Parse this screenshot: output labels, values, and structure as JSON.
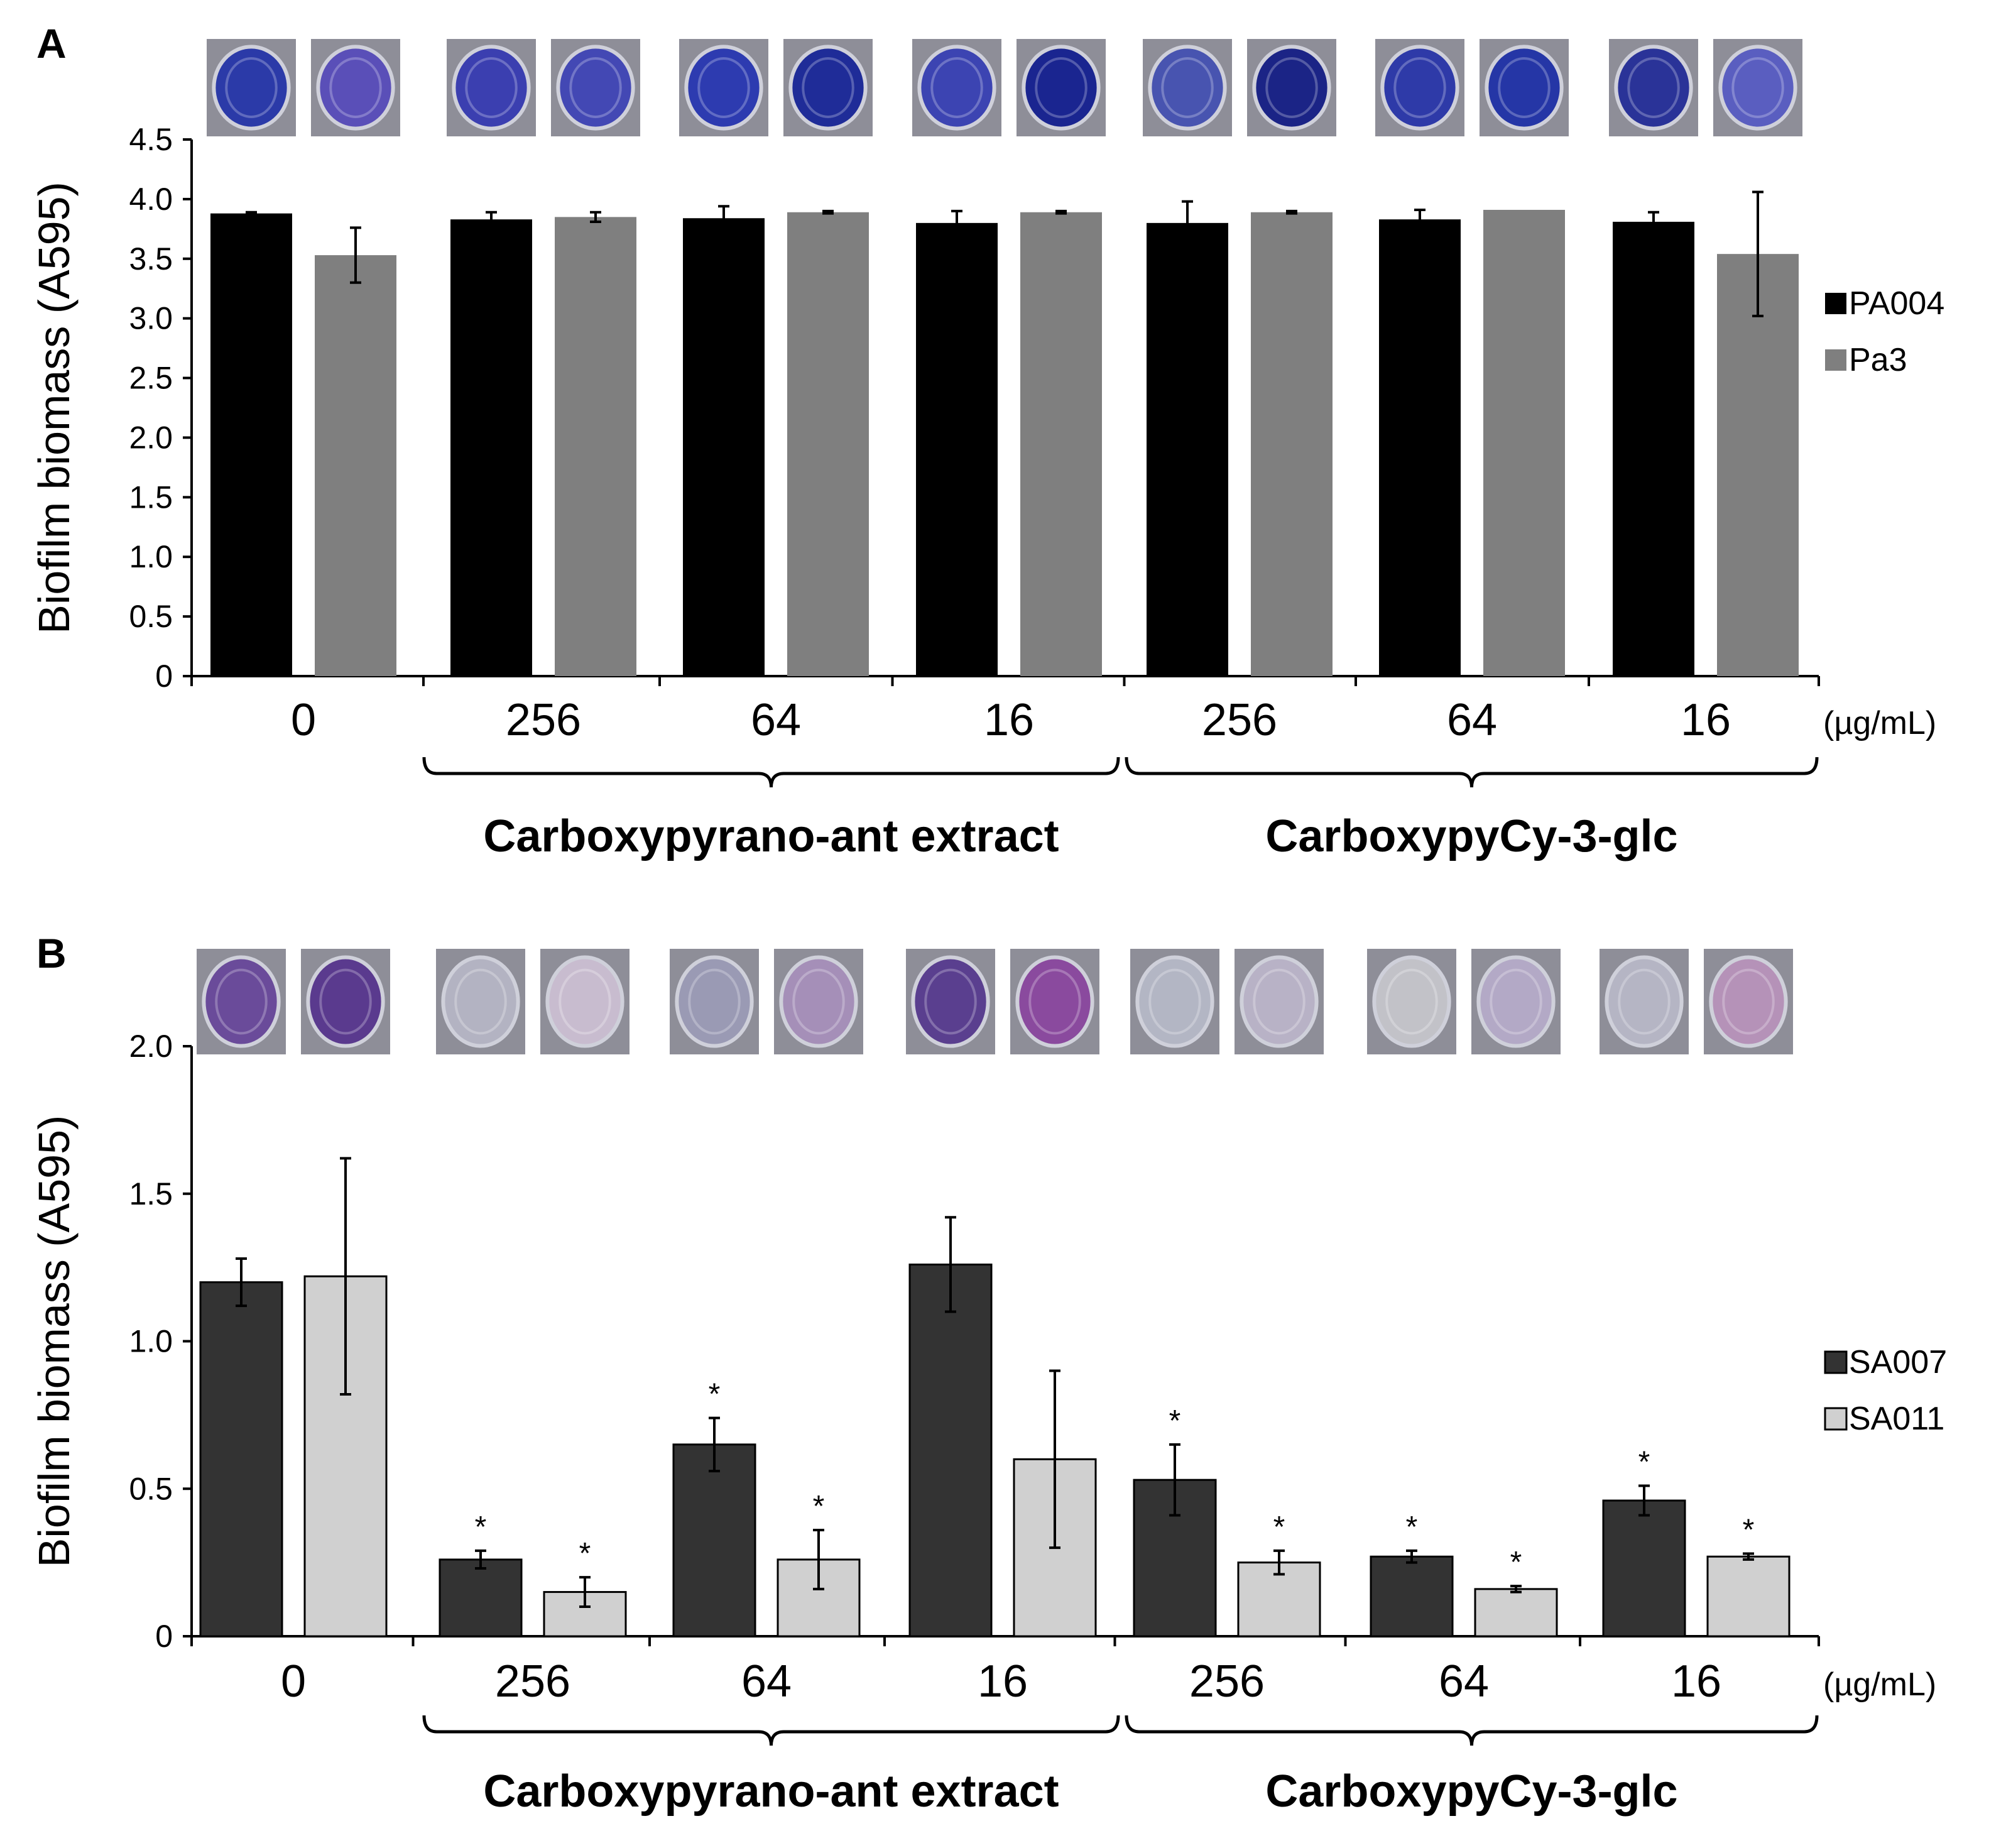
{
  "chart_data": [
    {
      "panel": "A",
      "type": "bar",
      "ylabel": "Biofilm biomass (A595)",
      "ylim": [
        0,
        4.5
      ],
      "yticks": [
        "0",
        "0.5",
        "1.0",
        "1.5",
        "2.0",
        "2.5",
        "3.0",
        "3.5",
        "4.0",
        "4.5"
      ],
      "categories": [
        "0",
        "256",
        "64",
        "16",
        "256",
        "64",
        "16"
      ],
      "unit": "(µg/mL)",
      "groups": [
        {
          "label": "Carboxypyrano-ant extract"
        },
        {
          "label": "CarboxypyCy-3-glc"
        }
      ],
      "series": [
        {
          "name": "PA004",
          "color": "#000000",
          "values": [
            3.88,
            3.83,
            3.84,
            3.8,
            3.8,
            3.83,
            3.81
          ],
          "errors": [
            0.01,
            0.06,
            0.1,
            0.1,
            0.18,
            0.08,
            0.08
          ]
        },
        {
          "name": "Pa3",
          "color": "#7f7f7f",
          "values": [
            3.53,
            3.85,
            3.89,
            3.89,
            3.89,
            3.91,
            3.54
          ],
          "errors": [
            0.23,
            0.04,
            0.01,
            0.01,
            0.01,
            0.0,
            0.52
          ]
        }
      ],
      "well_colors": [
        "#2b3aa8",
        "#5a4fb8",
        "#3b3fb0",
        "#4348b4",
        "#2d3bb0",
        "#1f2c98",
        "#3c44b2",
        "#1a2590",
        "#4854b0",
        "#1b2486",
        "#2e3aa8",
        "#2536a6",
        "#2a3398",
        "#5a5ec0"
      ]
    },
    {
      "panel": "B",
      "type": "bar",
      "ylabel": "Biofilm biomass (A595)",
      "ylim": [
        0,
        2.0
      ],
      "yticks": [
        "0",
        "0.5",
        "1.0",
        "1.5",
        "2.0"
      ],
      "categories": [
        "0",
        "256",
        "64",
        "16",
        "256",
        "64",
        "16"
      ],
      "unit": "(µg/mL)",
      "groups": [
        {
          "label": "Carboxypyrano-ant extract"
        },
        {
          "label": "CarboxypyCy-3-glc"
        }
      ],
      "series": [
        {
          "name": "SA007",
          "color": "#333333",
          "values": [
            1.2,
            0.26,
            0.65,
            1.26,
            0.53,
            0.27,
            0.46
          ],
          "errors": [
            0.08,
            0.03,
            0.09,
            0.16,
            0.12,
            0.02,
            0.05
          ],
          "significant": [
            false,
            true,
            true,
            false,
            true,
            true,
            true
          ]
        },
        {
          "name": "SA011",
          "color": "#d0d0d0",
          "values": [
            1.22,
            0.15,
            0.26,
            0.6,
            0.25,
            0.16,
            0.27
          ],
          "errors": [
            0.4,
            0.05,
            0.1,
            0.3,
            0.04,
            0.01,
            0.01
          ],
          "significant": [
            false,
            true,
            true,
            false,
            true,
            true,
            true
          ]
        }
      ],
      "significance_mark": "*",
      "well_colors": [
        "#6a4b9a",
        "#5a3a8e",
        "#b3b3c2",
        "#c8bccf",
        "#9a9ab4",
        "#a58fb8",
        "#5a3f8f",
        "#8a4a9e",
        "#b3b6c4",
        "#b8b2c6",
        "#c2c2c8",
        "#b3a9c6",
        "#b5b5c4",
        "#b592b8"
      ]
    }
  ]
}
